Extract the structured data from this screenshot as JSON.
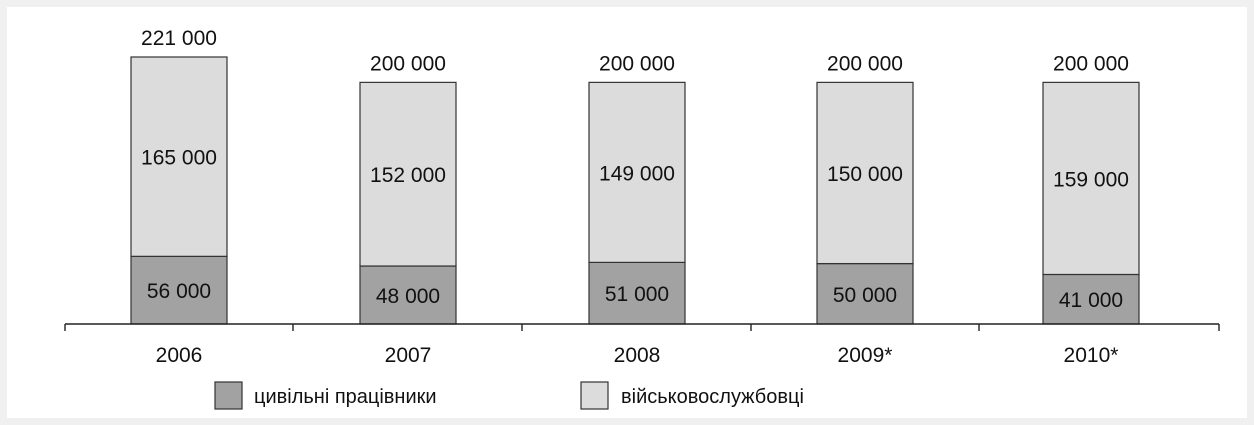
{
  "chart_data": {
    "type": "bar",
    "stacked": true,
    "categories": [
      "2006",
      "2007",
      "2008",
      "2009*",
      "2010*"
    ],
    "series": [
      {
        "name": "цивільні працівники",
        "values": [
          56000,
          48000,
          51000,
          50000,
          41000
        ],
        "color": "#a2a2a2"
      },
      {
        "name": "військовослужбовці",
        "values": [
          165000,
          152000,
          149000,
          150000,
          159000
        ],
        "color": "#dcdcdc"
      }
    ],
    "totals": [
      221000,
      200000,
      200000,
      200000,
      200000
    ],
    "segment_labels": {
      "civilian": [
        "56 000",
        "48 000",
        "51 000",
        "50 000",
        "41 000"
      ],
      "military": [
        "165 000",
        "152 000",
        "149 000",
        "150 000",
        "159 000"
      ],
      "totals": [
        "221 000",
        "200 000",
        "200 000",
        "200 000",
        "200 000"
      ]
    },
    "ylim": [
      0,
      221000
    ],
    "grid": false,
    "legend_position": "bottom",
    "title": "",
    "xlabel": "",
    "ylabel": ""
  }
}
